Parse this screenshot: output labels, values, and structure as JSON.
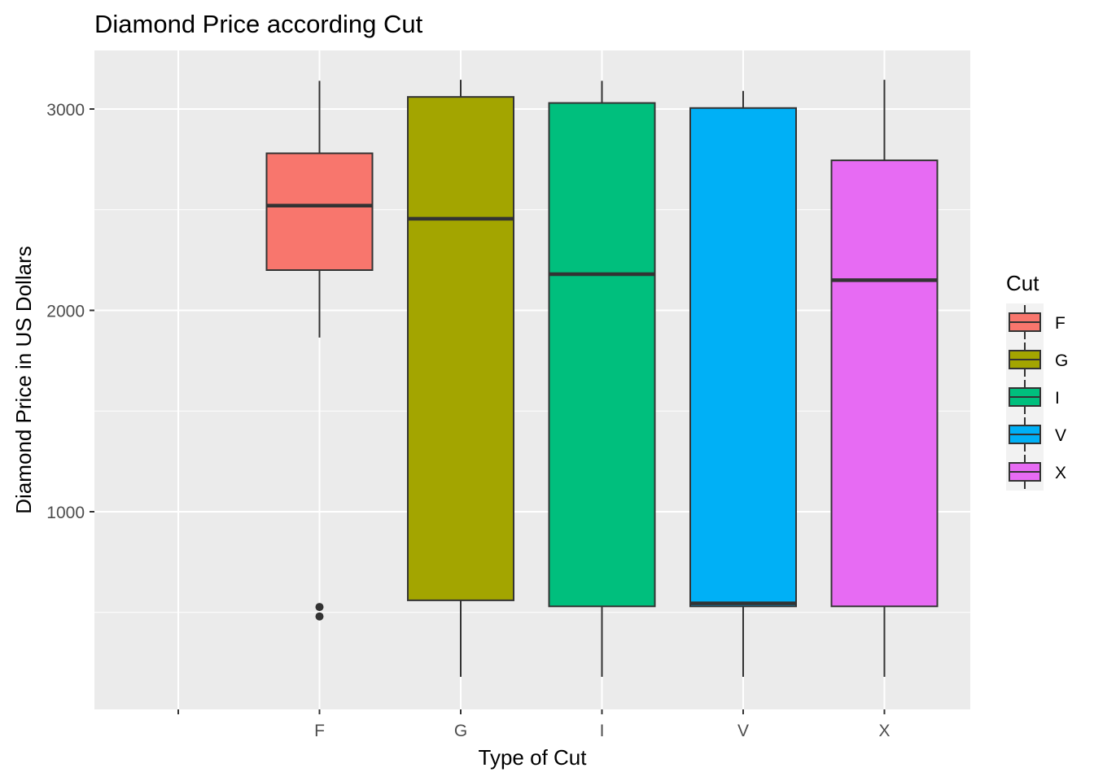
{
  "chart_data": {
    "type": "box",
    "title": "Diamond Price according Cut",
    "xlabel": "Type of Cut",
    "ylabel": "Diamond Price in US Dollars",
    "categories": [
      "",
      "F",
      "G",
      "I",
      "V",
      "X"
    ],
    "y_ticks": [
      1000,
      2000,
      3000
    ],
    "y_tick_labels": [
      "1000",
      "2000",
      "3000"
    ],
    "ylim": [
      0,
      3300
    ],
    "grid": true,
    "legend": {
      "title": "Cut",
      "position": "right",
      "entries": [
        "F",
        "G",
        "I",
        "V",
        "X"
      ]
    },
    "boxes": [
      {
        "category": "F",
        "whisker_low": 1865,
        "q1": 2200,
        "median": 2520,
        "q3": 2780,
        "whisker_high": 3140,
        "outliers": [
          527,
          480
        ]
      },
      {
        "category": "G",
        "whisker_low": 180,
        "q1": 560,
        "median": 2455,
        "q3": 3060,
        "whisker_high": 3145,
        "outliers": []
      },
      {
        "category": "I",
        "whisker_low": 180,
        "q1": 530,
        "median": 2180,
        "q3": 3030,
        "whisker_high": 3140,
        "outliers": []
      },
      {
        "category": "V",
        "whisker_low": 180,
        "q1": 530,
        "median": 545,
        "q3": 3005,
        "whisker_high": 3090,
        "outliers": []
      },
      {
        "category": "X",
        "whisker_low": 180,
        "q1": 530,
        "median": 2150,
        "q3": 2745,
        "whisker_high": 3145,
        "outliers": []
      }
    ]
  },
  "colors": {
    "panel_bg": "#EBEBEB",
    "grid": "#FFFFFF",
    "box_outline": "#333333",
    "fills": {
      "F": "#F8766D",
      "G": "#A3A500",
      "I": "#00BF7D",
      "V": "#00B0F6",
      "X": "#E76BF3"
    }
  }
}
